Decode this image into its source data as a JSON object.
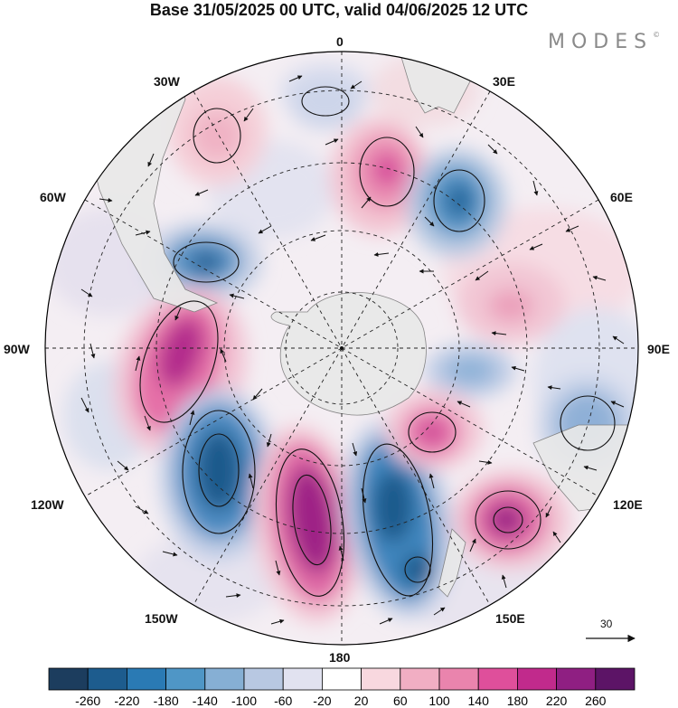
{
  "title": "Base 31/05/2025 00 UTC, valid 04/06/2025 12 UTC",
  "brand": "MODES",
  "brand_mark": "©",
  "longitude_labels": {
    "top": "0",
    "top_right": "30E",
    "right_upper": "60E",
    "right": "90E",
    "right_lower": "120E",
    "bottom_right": "150E",
    "bottom": "180",
    "bottom_left": "150W",
    "left_lower": "120W",
    "left": "90W",
    "left_upper": "60W",
    "top_left": "30W"
  },
  "reference_vector": {
    "label": "30",
    "icon": "arrow-right-icon"
  },
  "colorbar": {
    "ticks": [
      "-260",
      "-220",
      "-180",
      "-140",
      "-100",
      "-60",
      "-20",
      "20",
      "60",
      "100",
      "140",
      "180",
      "220",
      "260"
    ],
    "colors": [
      "#1c3d5e",
      "#1d5c8e",
      "#2a7ab4",
      "#4f96c6",
      "#86afd4",
      "#b8c8e2",
      "#e1e2f0",
      "#ffffff",
      "#f8d8df",
      "#f1aec3",
      "#ea84ad",
      "#df4f9b",
      "#c12a8c",
      "#8f1f82",
      "#5c1466"
    ]
  },
  "colors": {
    "land": "#e9e9e9",
    "coast": "#7d7d7d",
    "grid": "#222222",
    "map_border": "#000000"
  }
}
